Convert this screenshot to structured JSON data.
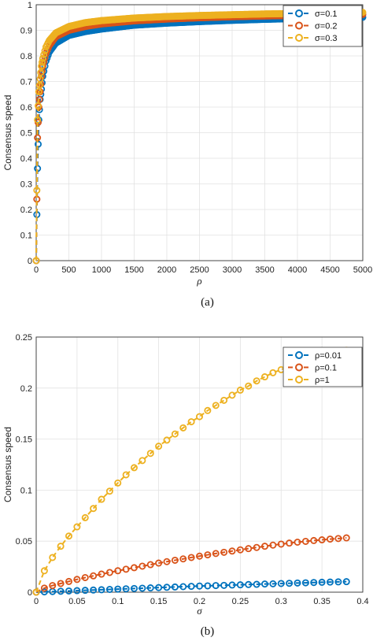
{
  "chart_data": [
    {
      "type": "line",
      "xlabel": "ρ",
      "ylabel": "Consensus speed",
      "caption": "(a)",
      "xlim": [
        0,
        5000
      ],
      "ylim": [
        0,
        1
      ],
      "xticks": [
        "0",
        "500",
        "1000",
        "1500",
        "2000",
        "2500",
        "3000",
        "3500",
        "4000",
        "4500",
        "5000"
      ],
      "yticks": [
        "0",
        "0.1",
        "0.2",
        "0.3",
        "0.4",
        "0.5",
        "0.6",
        "0.7",
        "0.8",
        "0.9",
        "1"
      ],
      "grid": true,
      "legend_position": "top-right",
      "series": [
        {
          "name": "σ=0.1",
          "color": "#0072BD",
          "x": [
            0,
            20,
            40,
            60,
            80,
            100,
            150,
            200,
            300,
            500,
            750,
            1000,
            1500,
            2000,
            2500,
            3000,
            3500,
            4000,
            4500,
            5000
          ],
          "y": [
            0,
            0.36,
            0.55,
            0.63,
            0.67,
            0.72,
            0.78,
            0.815,
            0.85,
            0.88,
            0.895,
            0.905,
            0.92,
            0.928,
            0.934,
            0.939,
            0.943,
            0.946,
            0.949,
            0.951
          ]
        },
        {
          "name": "σ=0.2",
          "color": "#D95319",
          "x": [
            0,
            20,
            40,
            60,
            80,
            100,
            150,
            200,
            300,
            500,
            750,
            1000,
            1500,
            2000,
            2500,
            3000,
            3500,
            4000,
            4500,
            5000
          ],
          "y": [
            0,
            0.48,
            0.6,
            0.66,
            0.72,
            0.76,
            0.81,
            0.84,
            0.875,
            0.9,
            0.915,
            0.925,
            0.937,
            0.944,
            0.949,
            0.953,
            0.956,
            0.958,
            0.96,
            0.962
          ]
        },
        {
          "name": "σ=0.3",
          "color": "#EDB120",
          "x": [
            0,
            20,
            40,
            60,
            80,
            100,
            150,
            200,
            300,
            500,
            750,
            1000,
            1500,
            2000,
            2500,
            3000,
            3500,
            4000,
            4500,
            5000
          ],
          "y": [
            0,
            0.55,
            0.66,
            0.71,
            0.76,
            0.79,
            0.835,
            0.86,
            0.89,
            0.915,
            0.93,
            0.938,
            0.948,
            0.954,
            0.958,
            0.961,
            0.964,
            0.966,
            0.968,
            0.97
          ]
        }
      ]
    },
    {
      "type": "line",
      "xlabel": "σ",
      "ylabel": "Consensus speed",
      "caption": "(b)",
      "xlim": [
        0,
        0.4
      ],
      "ylim": [
        0,
        0.25
      ],
      "xticks": [
        "0",
        "0.05",
        "0.1",
        "0.15",
        "0.2",
        "0.25",
        "0.3",
        "0.35",
        "0.4"
      ],
      "yticks": [
        "0",
        "0.05",
        "0.1",
        "0.15",
        "0.2",
        "0.25"
      ],
      "grid": true,
      "legend_position": "top-right",
      "series": [
        {
          "name": "ρ=0.01",
          "color": "#0072BD",
          "x": [
            0,
            0.01,
            0.02,
            0.03,
            0.04,
            0.05,
            0.06,
            0.07,
            0.08,
            0.09,
            0.1,
            0.11,
            0.12,
            0.13,
            0.14,
            0.15,
            0.16,
            0.17,
            0.18,
            0.19,
            0.2,
            0.21,
            0.22,
            0.23,
            0.24,
            0.25,
            0.26,
            0.27,
            0.28,
            0.29,
            0.3,
            0.31,
            0.32,
            0.33,
            0.34,
            0.35,
            0.36,
            0.37,
            0.38
          ],
          "y": [
            0,
            0.0003,
            0.0006,
            0.0009,
            0.0012,
            0.0015,
            0.0018,
            0.0021,
            0.0024,
            0.0027,
            0.003,
            0.0033,
            0.0036,
            0.0039,
            0.0042,
            0.0045,
            0.0048,
            0.0051,
            0.0054,
            0.0057,
            0.006,
            0.0062,
            0.0065,
            0.0067,
            0.007,
            0.0072,
            0.0075,
            0.0077,
            0.008,
            0.0082,
            0.0085,
            0.0087,
            0.009,
            0.0092,
            0.0095,
            0.0097,
            0.0099,
            0.0101,
            0.0103
          ]
        },
        {
          "name": "ρ=0.1",
          "color": "#D95319",
          "x": [
            0,
            0.01,
            0.02,
            0.03,
            0.04,
            0.05,
            0.06,
            0.07,
            0.08,
            0.09,
            0.1,
            0.11,
            0.12,
            0.13,
            0.14,
            0.15,
            0.16,
            0.17,
            0.18,
            0.19,
            0.2,
            0.21,
            0.22,
            0.23,
            0.24,
            0.25,
            0.26,
            0.27,
            0.28,
            0.29,
            0.3,
            0.31,
            0.32,
            0.33,
            0.34,
            0.35,
            0.36,
            0.37,
            0.38
          ],
          "y": [
            0,
            0.004,
            0.0065,
            0.0085,
            0.0105,
            0.0125,
            0.0143,
            0.016,
            0.0177,
            0.0193,
            0.021,
            0.0225,
            0.024,
            0.0255,
            0.027,
            0.0285,
            0.0299,
            0.0313,
            0.0326,
            0.034,
            0.0353,
            0.0366,
            0.0379,
            0.0391,
            0.0403,
            0.0415,
            0.0427,
            0.0438,
            0.045,
            0.0461,
            0.0471,
            0.0481,
            0.049,
            0.0498,
            0.0506,
            0.0513,
            0.052,
            0.0526,
            0.0532
          ]
        },
        {
          "name": "ρ=1",
          "color": "#EDB120",
          "x": [
            0,
            0.01,
            0.02,
            0.03,
            0.04,
            0.05,
            0.06,
            0.07,
            0.08,
            0.09,
            0.1,
            0.11,
            0.12,
            0.13,
            0.14,
            0.15,
            0.16,
            0.17,
            0.18,
            0.19,
            0.2,
            0.21,
            0.22,
            0.23,
            0.24,
            0.25,
            0.26,
            0.27,
            0.28,
            0.29,
            0.3,
            0.31,
            0.32,
            0.33,
            0.34,
            0.35,
            0.36,
            0.37,
            0.38
          ],
          "y": [
            0,
            0.021,
            0.034,
            0.045,
            0.055,
            0.064,
            0.073,
            0.082,
            0.091,
            0.099,
            0.107,
            0.115,
            0.122,
            0.129,
            0.136,
            0.143,
            0.149,
            0.155,
            0.161,
            0.167,
            0.172,
            0.178,
            0.183,
            0.188,
            0.193,
            0.198,
            0.202,
            0.207,
            0.211,
            0.215,
            0.218,
            0.221,
            0.224,
            0.227,
            0.229,
            0.231,
            0.233,
            0.235,
            0.237
          ]
        }
      ]
    }
  ]
}
